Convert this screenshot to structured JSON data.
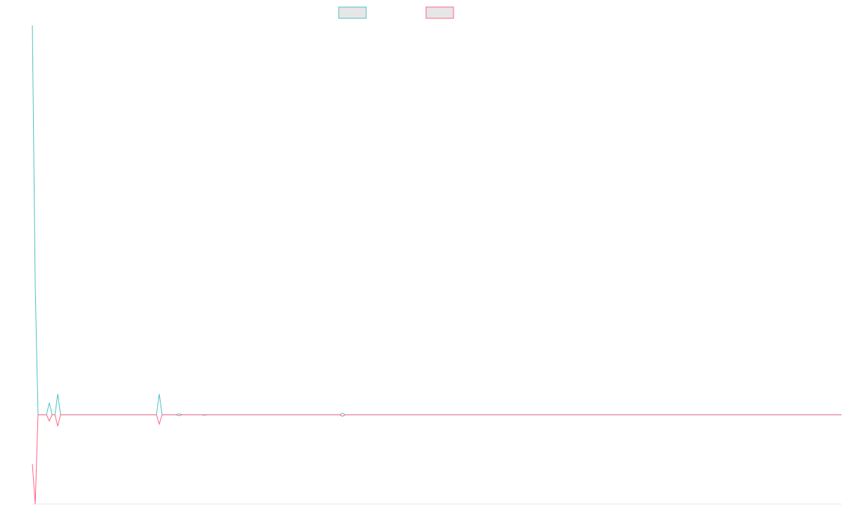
{
  "chart_data": {
    "type": "line",
    "title": "",
    "xlabel": "",
    "ylabel": "",
    "legend": "top-center",
    "grid": false,
    "x_count": 288,
    "ylim": [
      -17.2,
      75
    ],
    "series": [
      {
        "name": "",
        "color": "#4bc0c0",
        "points": [
          {
            "x": 0,
            "y": 75
          },
          {
            "x": 1,
            "y": 25
          },
          {
            "x": 2,
            "y": 0
          },
          {
            "x": 3,
            "y": 0
          },
          {
            "x": 4,
            "y": 0
          },
          {
            "x": 5,
            "y": 0
          },
          {
            "x": 6,
            "y": 2.3
          },
          {
            "x": 7,
            "y": 0
          },
          {
            "x": 8,
            "y": 0
          },
          {
            "x": 9,
            "y": 4
          },
          {
            "x": 10,
            "y": 0
          },
          {
            "x": 44,
            "y": 0
          },
          {
            "x": 45,
            "y": 4
          },
          {
            "x": 46,
            "y": 0
          },
          {
            "x": 51,
            "y": 0
          },
          {
            "x": 52,
            "y": 0.2
          },
          {
            "x": 53,
            "y": 0
          },
          {
            "x": 109,
            "y": 0
          },
          {
            "x": 110,
            "y": 0.3
          },
          {
            "x": 111,
            "y": 0
          },
          {
            "x": 287,
            "y": 0
          }
        ]
      },
      {
        "name": "",
        "color": "#ff6384",
        "points": [
          {
            "x": 0,
            "y": -9.5
          },
          {
            "x": 1,
            "y": -17.2
          },
          {
            "x": 2,
            "y": 0
          },
          {
            "x": 3,
            "y": 0
          },
          {
            "x": 4,
            "y": 0
          },
          {
            "x": 5,
            "y": 0
          },
          {
            "x": 6,
            "y": -1.2
          },
          {
            "x": 7,
            "y": 0
          },
          {
            "x": 8,
            "y": 0
          },
          {
            "x": 9,
            "y": -2.2
          },
          {
            "x": 10,
            "y": 0
          },
          {
            "x": 44,
            "y": 0
          },
          {
            "x": 45,
            "y": -1.8
          },
          {
            "x": 46,
            "y": 0
          },
          {
            "x": 51,
            "y": 0
          },
          {
            "x": 52,
            "y": -0.2
          },
          {
            "x": 53,
            "y": 0
          },
          {
            "x": 60,
            "y": 0
          },
          {
            "x": 61,
            "y": -0.1
          },
          {
            "x": 62,
            "y": 0
          },
          {
            "x": 109,
            "y": 0
          },
          {
            "x": 110,
            "y": -0.3
          },
          {
            "x": 111,
            "y": 0
          },
          {
            "x": 287,
            "y": 0
          }
        ]
      }
    ]
  }
}
